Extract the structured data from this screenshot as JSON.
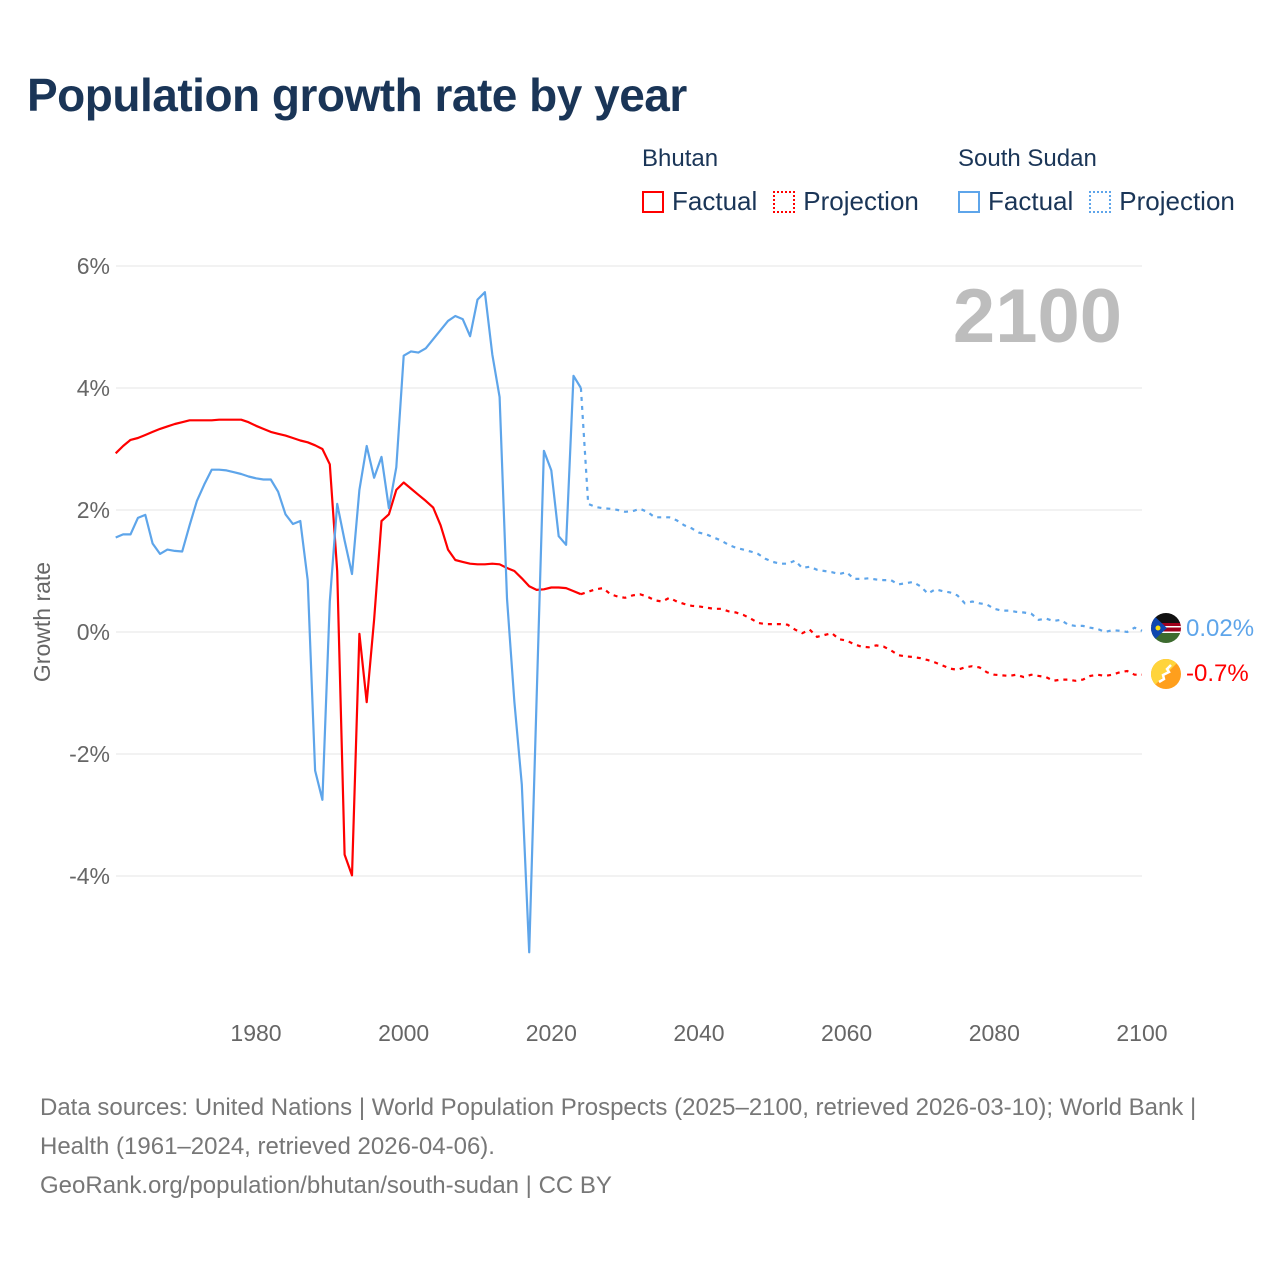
{
  "title": "Population growth rate by year",
  "legend": {
    "groups": [
      {
        "name": "Bhutan",
        "factual_label": "Factual",
        "projection_label": "Projection",
        "color": "#ff0000"
      },
      {
        "name": "South Sudan",
        "factual_label": "Factual",
        "projection_label": "Projection",
        "color": "#5ea5ea"
      }
    ]
  },
  "footer": {
    "sources": "Data sources: United Nations | World Population Prospects (2025–2100, retrieved 2026-03-10); World Bank | Health (1961–2024, retrieved 2026-04-06).",
    "credit": "GeoRank.org/population/bhutan/south-sudan | CC BY"
  },
  "chart_data": {
    "type": "line",
    "title": "Population growth rate by year",
    "ylabel": "Growth rate",
    "xlabel": "",
    "year_watermark": "2100",
    "xlim": [
      1961,
      2100
    ],
    "ylim": [
      -5.9,
      6.3
    ],
    "x_ticks": [
      1980,
      2000,
      2020,
      2040,
      2060,
      2080,
      2100
    ],
    "y_ticks": [
      6,
      4,
      2,
      0,
      -2,
      -4
    ],
    "y_tick_labels": [
      "6%",
      "4%",
      "2%",
      "0%",
      "-2%",
      "-4%"
    ],
    "grid": true,
    "series": [
      {
        "name": "Bhutan",
        "color": "#ff0000",
        "end_label": "-0.7%",
        "flag": "bhutan-flag",
        "factual": {
          "start": 1961,
          "values": [
            2.93,
            3.05,
            3.15,
            3.18,
            3.23,
            3.28,
            3.33,
            3.37,
            3.41,
            3.44,
            3.47,
            3.47,
            3.47,
            3.47,
            3.48,
            3.48,
            3.48,
            3.48,
            3.44,
            3.38,
            3.33,
            3.28,
            3.25,
            3.22,
            3.18,
            3.14,
            3.11,
            3.06,
            3.0,
            2.75,
            1.0,
            -3.65,
            -3.99,
            -0.03,
            -1.15,
            0.2,
            1.82,
            1.93,
            2.33,
            2.45,
            2.35,
            2.25,
            2.15,
            2.04,
            1.75,
            1.35,
            1.18,
            1.15,
            1.12,
            1.11,
            1.11,
            1.12,
            1.11,
            1.05,
            1.0,
            0.88,
            0.75,
            0.69,
            0.7,
            0.73,
            0.73,
            0.72,
            0.67,
            0.62
          ]
        },
        "projection": {
          "start": 2024,
          "values": [
            0.62,
            0.66,
            0.7,
            0.72,
            0.62,
            0.58,
            0.56,
            0.6,
            0.62,
            0.58,
            0.52,
            0.5,
            0.56,
            0.5,
            0.46,
            0.43,
            0.42,
            0.4,
            0.38,
            0.38,
            0.34,
            0.32,
            0.28,
            0.22,
            0.15,
            0.13,
            0.13,
            0.13,
            0.12,
            0.04,
            -0.02,
            0.04,
            -0.08,
            -0.05,
            -0.02,
            -0.12,
            -0.14,
            -0.2,
            -0.24,
            -0.25,
            -0.22,
            -0.24,
            -0.3,
            -0.38,
            -0.4,
            -0.41,
            -0.43,
            -0.46,
            -0.5,
            -0.55,
            -0.6,
            -0.62,
            -0.58,
            -0.56,
            -0.58,
            -0.66,
            -0.7,
            -0.71,
            -0.72,
            -0.7,
            -0.74,
            -0.7,
            -0.72,
            -0.74,
            -0.8,
            -0.78,
            -0.78,
            -0.8,
            -0.78,
            -0.72,
            -0.7,
            -0.72,
            -0.7,
            -0.66,
            -0.64,
            -0.7,
            -0.7
          ]
        }
      },
      {
        "name": "South Sudan",
        "color": "#5ea5ea",
        "end_label": "0.02%",
        "flag": "south-sudan-flag",
        "factual": {
          "start": 1961,
          "values": [
            1.55,
            1.6,
            1.6,
            1.87,
            1.92,
            1.45,
            1.28,
            1.35,
            1.33,
            1.32,
            1.75,
            2.15,
            2.42,
            2.66,
            2.66,
            2.65,
            2.62,
            2.59,
            2.55,
            2.52,
            2.5,
            2.5,
            2.3,
            1.93,
            1.77,
            1.82,
            0.85,
            -2.27,
            -2.75,
            0.5,
            2.1,
            1.5,
            0.95,
            2.33,
            3.05,
            2.53,
            2.87,
            2.03,
            2.7,
            4.53,
            4.6,
            4.58,
            4.65,
            4.8,
            4.95,
            5.1,
            5.18,
            5.13,
            4.85,
            5.45,
            5.57,
            4.55,
            3.85,
            0.55,
            -1.15,
            -2.5,
            -5.25,
            -1.1,
            2.97,
            2.65,
            1.57,
            1.43,
            4.2,
            4.0
          ]
        },
        "projection": {
          "start": 2024,
          "values": [
            4.0,
            2.1,
            2.05,
            2.03,
            2.02,
            2.0,
            1.97,
            1.98,
            2.02,
            1.97,
            1.88,
            1.88,
            1.88,
            1.83,
            1.75,
            1.7,
            1.63,
            1.6,
            1.55,
            1.5,
            1.43,
            1.38,
            1.35,
            1.32,
            1.28,
            1.2,
            1.15,
            1.12,
            1.12,
            1.17,
            1.05,
            1.07,
            1.02,
            1.0,
            0.98,
            0.95,
            0.98,
            0.87,
            0.87,
            0.88,
            0.86,
            0.85,
            0.85,
            0.78,
            0.8,
            0.82,
            0.75,
            0.63,
            0.7,
            0.67,
            0.65,
            0.6,
            0.47,
            0.5,
            0.47,
            0.45,
            0.38,
            0.35,
            0.35,
            0.33,
            0.32,
            0.3,
            0.2,
            0.22,
            0.18,
            0.2,
            0.12,
            0.1,
            0.1,
            0.07,
            0.05,
            0.0,
            0.03,
            0.02,
            0.0,
            0.07,
            0.02
          ]
        }
      }
    ]
  }
}
